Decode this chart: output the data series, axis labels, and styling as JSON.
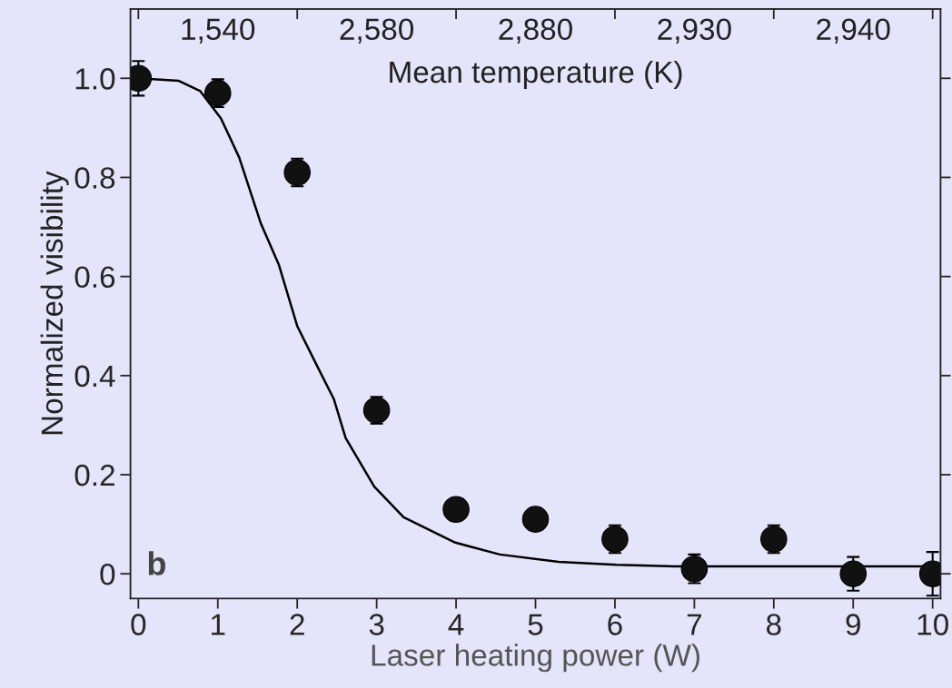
{
  "chart_data": {
    "type": "scatter",
    "xlabel": "Laser heating power (W)",
    "ylabel": "Normalized visibility",
    "x2label": "Mean temperature (K)",
    "annotations": [
      "b",
      "1,540",
      "2,580",
      "2,880",
      "2,930",
      "2,940"
    ],
    "xlim": [
      -0.1,
      10.1
    ],
    "xticks": [
      0,
      1,
      2,
      3,
      4,
      5,
      6,
      7,
      8,
      9,
      10
    ],
    "ylim": [
      -0.05,
      1.14
    ],
    "yticks": [
      0,
      0.2,
      0.4,
      0.6,
      0.8,
      {
        "value": 1,
        "label": "1.0"
      }
    ],
    "grid": false,
    "series": [
      {
        "color": "#111111",
        "marker": "circle",
        "x": [
          0,
          1,
          2,
          3,
          4,
          5,
          6,
          7,
          8,
          9,
          10
        ],
        "values": [
          1.0,
          0.97,
          0.81,
          0.33,
          0.13,
          0.11,
          0.07,
          0.01,
          0.07,
          0.0,
          0.0
        ],
        "errors": [
          0.035,
          0.028,
          0.028,
          0.027,
          0.022,
          0.021,
          0.028,
          0.029,
          0.028,
          0.034,
          0.044
        ]
      },
      {
        "type": "line",
        "color": "#000000",
        "marker": "none",
        "line_style": "solid",
        "x": [
          0,
          0.51,
          0.78,
          1.04,
          1.27,
          1.54,
          1.77,
          2.0,
          2.23,
          2.46,
          2.61,
          2.97,
          3.34,
          3.99,
          4.55,
          5.29,
          6.02,
          6.75,
          10
        ],
        "values": [
          1.0,
          0.995,
          0.974,
          0.919,
          0.84,
          0.708,
          0.623,
          0.5,
          0.426,
          0.353,
          0.274,
          0.176,
          0.114,
          0.063,
          0.039,
          0.024,
          0.018,
          0.015,
          0.015
        ]
      }
    ]
  }
}
